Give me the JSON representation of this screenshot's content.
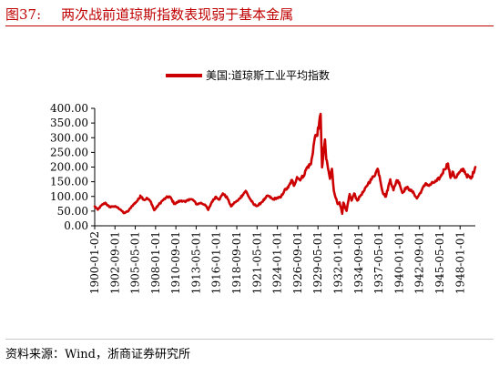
{
  "figure": {
    "number": "图37:",
    "title": "两次战前道琼斯指数表现弱于基本金属",
    "source": "资料来源：Wind，浙商证券研究所"
  },
  "colors": {
    "accent": "#c00000",
    "series": "#cc0000"
  },
  "chart_data": {
    "type": "line",
    "title": "",
    "xlabel": "",
    "ylabel": "",
    "legend": {
      "position": "top-center",
      "entries": [
        "美国:道琼斯工业平均指数"
      ]
    },
    "ylim": [
      0,
      400
    ],
    "yticks": [
      "0.00",
      "50.00",
      "100.00",
      "150.00",
      "200.00",
      "250.00",
      "300.00",
      "350.00",
      "400.00"
    ],
    "xlim": [
      "1900-01-02",
      "1949-12-31"
    ],
    "xticks": [
      "1900-01-02",
      "1902-09-01",
      "1905-05-01",
      "1908-01-01",
      "1910-09-01",
      "1913-05-01",
      "1916-01-01",
      "1918-09-01",
      "1921-05-01",
      "1924-01-01",
      "1926-09-01",
      "1929-05-01",
      "1932-01-01",
      "1934-09-01",
      "1937-05-01",
      "1940-01-01",
      "1942-09-01",
      "1945-05-01",
      "1948-01-01"
    ],
    "grid": false,
    "series": [
      {
        "name": "美国:道琼斯工业平均指数",
        "points": [
          [
            "1900-01-02",
            66
          ],
          [
            "1900-06-01",
            55
          ],
          [
            "1900-12-01",
            70
          ],
          [
            "1901-06-01",
            78
          ],
          [
            "1901-12-01",
            64
          ],
          [
            "1902-06-01",
            66
          ],
          [
            "1902-12-01",
            64
          ],
          [
            "1903-06-01",
            55
          ],
          [
            "1903-11-01",
            43
          ],
          [
            "1904-06-01",
            50
          ],
          [
            "1904-12-01",
            68
          ],
          [
            "1905-06-01",
            80
          ],
          [
            "1905-12-01",
            95
          ],
          [
            "1906-01-01",
            103
          ],
          [
            "1906-07-01",
            88
          ],
          [
            "1906-12-01",
            94
          ],
          [
            "1907-06-01",
            80
          ],
          [
            "1907-11-01",
            53
          ],
          [
            "1908-06-01",
            72
          ],
          [
            "1908-12-01",
            86
          ],
          [
            "1909-06-01",
            96
          ],
          [
            "1909-11-01",
            100
          ],
          [
            "1910-07-01",
            74
          ],
          [
            "1910-12-01",
            81
          ],
          [
            "1911-06-01",
            86
          ],
          [
            "1911-12-01",
            81
          ],
          [
            "1912-06-01",
            91
          ],
          [
            "1912-12-01",
            88
          ],
          [
            "1913-06-01",
            73
          ],
          [
            "1913-12-01",
            78
          ],
          [
            "1914-07-01",
            72
          ],
          [
            "1914-12-01",
            54
          ],
          [
            "1915-06-01",
            82
          ],
          [
            "1915-12-01",
            99
          ],
          [
            "1916-06-01",
            90
          ],
          [
            "1916-11-01",
            110
          ],
          [
            "1917-06-01",
            95
          ],
          [
            "1917-12-01",
            66
          ],
          [
            "1918-06-01",
            80
          ],
          [
            "1918-11-01",
            86
          ],
          [
            "1919-06-01",
            105
          ],
          [
            "1919-11-01",
            119
          ],
          [
            "1920-06-01",
            91
          ],
          [
            "1920-12-01",
            72
          ],
          [
            "1921-06-01",
            68
          ],
          [
            "1921-12-01",
            80
          ],
          [
            "1922-06-01",
            93
          ],
          [
            "1922-10-01",
            103
          ],
          [
            "1923-06-01",
            90
          ],
          [
            "1923-12-01",
            95
          ],
          [
            "1924-06-01",
            96
          ],
          [
            "1924-12-01",
            120
          ],
          [
            "1925-06-01",
            130
          ],
          [
            "1925-12-01",
            156
          ],
          [
            "1926-03-01",
            136
          ],
          [
            "1926-08-01",
            166
          ],
          [
            "1926-12-01",
            157
          ],
          [
            "1927-06-01",
            170
          ],
          [
            "1927-12-01",
            200
          ],
          [
            "1928-06-01",
            210
          ],
          [
            "1928-12-01",
            300
          ],
          [
            "1929-03-01",
            310
          ],
          [
            "1929-06-01",
            330
          ],
          [
            "1929-09-03",
            381
          ],
          [
            "1929-11-13",
            199
          ],
          [
            "1930-04-01",
            294
          ],
          [
            "1930-06-01",
            226
          ],
          [
            "1930-12-01",
            160
          ],
          [
            "1931-03-01",
            194
          ],
          [
            "1931-06-01",
            120
          ],
          [
            "1931-12-01",
            74
          ],
          [
            "1932-03-01",
            80
          ],
          [
            "1932-07-08",
            41
          ],
          [
            "1932-09-01",
            79
          ],
          [
            "1932-12-01",
            60
          ],
          [
            "1933-02-01",
            51
          ],
          [
            "1933-07-01",
            108
          ],
          [
            "1933-10-01",
            86
          ],
          [
            "1934-02-01",
            110
          ],
          [
            "1934-07-01",
            86
          ],
          [
            "1934-12-01",
            103
          ],
          [
            "1935-06-01",
            120
          ],
          [
            "1935-12-01",
            144
          ],
          [
            "1936-06-01",
            160
          ],
          [
            "1936-12-01",
            180
          ],
          [
            "1937-03-01",
            194
          ],
          [
            "1937-06-01",
            170
          ],
          [
            "1937-11-01",
            114
          ],
          [
            "1938-03-31",
            99
          ],
          [
            "1938-11-01",
            158
          ],
          [
            "1939-04-01",
            121
          ],
          [
            "1939-09-01",
            155
          ],
          [
            "1940-01-01",
            148
          ],
          [
            "1940-06-01",
            112
          ],
          [
            "1940-12-01",
            131
          ],
          [
            "1941-06-01",
            123
          ],
          [
            "1941-12-01",
            111
          ],
          [
            "1942-04-28",
            93
          ],
          [
            "1942-12-01",
            119
          ],
          [
            "1943-07-01",
            145
          ],
          [
            "1943-12-01",
            136
          ],
          [
            "1944-06-01",
            146
          ],
          [
            "1944-12-01",
            152
          ],
          [
            "1945-06-01",
            166
          ],
          [
            "1945-12-01",
            192
          ],
          [
            "1946-05-29",
            212
          ],
          [
            "1946-10-01",
            163
          ],
          [
            "1947-02-01",
            184
          ],
          [
            "1947-05-01",
            163
          ],
          [
            "1947-12-01",
            181
          ],
          [
            "1948-06-14",
            193
          ],
          [
            "1948-11-01",
            172
          ],
          [
            "1949-06-13",
            161
          ],
          [
            "1949-12-31",
            200
          ]
        ]
      }
    ]
  }
}
